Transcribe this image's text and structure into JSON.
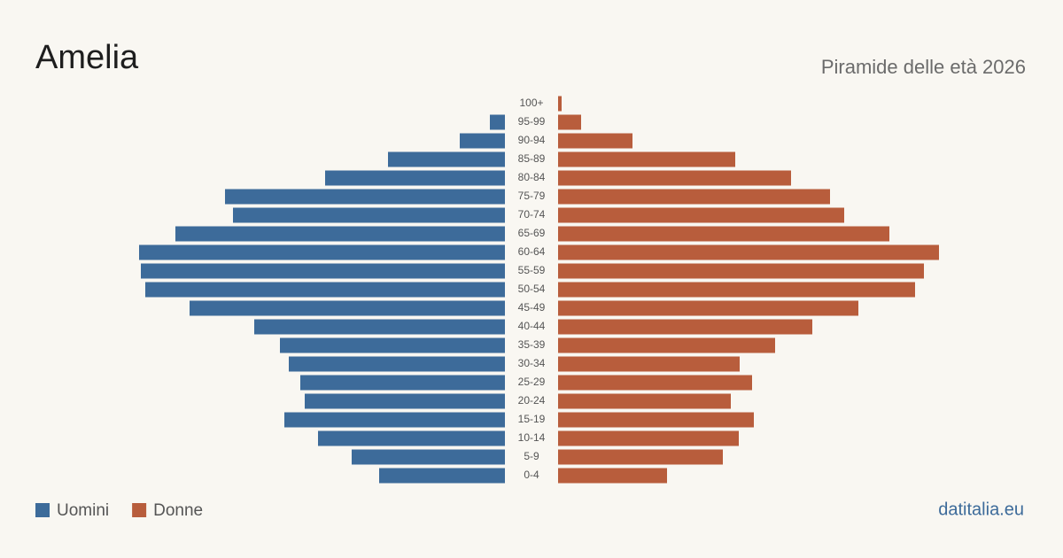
{
  "chart_data": {
    "type": "pyramid",
    "title": "Amelia",
    "subtitle": "Piramide delle età 2026",
    "source": "datitalia.eu",
    "categories": [
      "100+",
      "95-99",
      "90-94",
      "85-89",
      "80-84",
      "75-79",
      "70-74",
      "65-69",
      "60-64",
      "55-59",
      "50-54",
      "45-49",
      "40-44",
      "35-39",
      "30-34",
      "25-29",
      "20-24",
      "15-19",
      "10-14",
      "5-9",
      "0-4"
    ],
    "series": [
      {
        "name": "Uomini",
        "color": "#3d6b9a",
        "values": [
          0,
          17,
          51,
          132,
          203,
          316,
          307,
          372,
          413,
          411,
          406,
          356,
          283,
          254,
          244,
          231,
          226,
          249,
          211,
          173,
          142
        ]
      },
      {
        "name": "Donne",
        "color": "#b85d3c",
        "values": [
          4,
          26,
          84,
          200,
          263,
          307,
          323,
          374,
          430,
          413,
          403,
          339,
          287,
          245,
          205,
          219,
          195,
          221,
          204,
          186,
          123
        ]
      }
    ],
    "xlim": [
      0,
      440
    ]
  }
}
